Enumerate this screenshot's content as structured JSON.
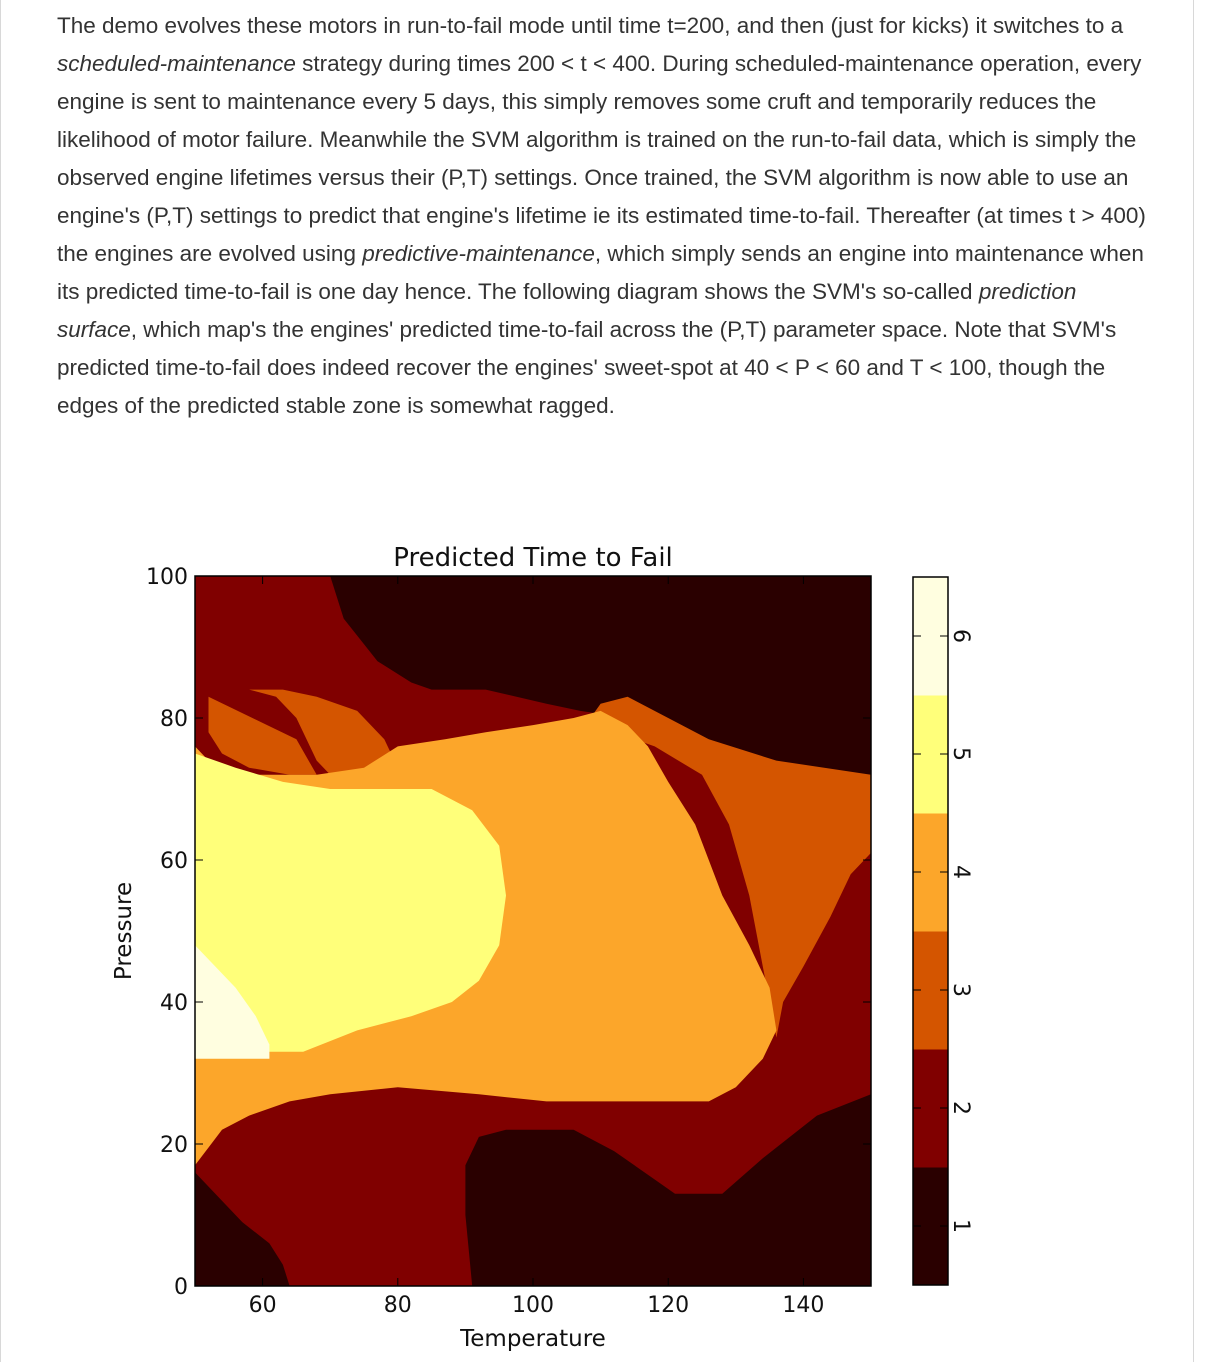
{
  "paragraph": {
    "p1": "The demo evolves these motors in run-to-fail mode until time t=200, and then (just for kicks) it switches to a ",
    "em1": "scheduled-maintenance",
    "p2": " strategy during times 200 < t < 400. During scheduled-maintenance operation, every engine is sent to maintenance every 5 days, this simply removes some cruft and temporarily reduces the likelihood of motor failure. Meanwhile the SVM algorithm is trained on the run-to-fail data, which is simply the observed engine lifetimes versus their (P,T) settings. Once trained, the SVM algorithm is now able to use an engine's (P,T) settings to predict that engine's lifetime ie its estimated time-to-fail. Thereafter (at times t > 400) the engines are evolved using ",
    "em2": "predictive-maintenance",
    "p3": ", which simply sends an engine into maintenance when its predicted time-to-fail is one day hence. The following diagram shows the SVM's so-called ",
    "em3": "prediction surface",
    "p4": ", which map's the engines' predicted time-to-fail across the (P,T) parameter space. Note that SVM's predicted time-to-fail does indeed recover the engines' sweet-spot at 40 < P < 60 and T < 100, though the edges of the predicted stable zone is somewhat ragged."
  },
  "chart_data": {
    "type": "heatmap",
    "title": "Predicted Time to Fail",
    "xlabel": "Temperature",
    "ylabel": "Pressure",
    "xlim": [
      50,
      150
    ],
    "ylim": [
      0,
      100
    ],
    "x_ticks": [
      "60",
      "80",
      "100",
      "120",
      "140"
    ],
    "y_ticks": [
      "0",
      "20",
      "40",
      "60",
      "80",
      "100"
    ],
    "colorbar": {
      "ticks": [
        "1",
        "2",
        "3",
        "4",
        "5",
        "6"
      ],
      "levels": [
        {
          "value": 1,
          "color": "#2a0000"
        },
        {
          "value": 2,
          "color": "#800000"
        },
        {
          "value": 3,
          "color": "#d45500"
        },
        {
          "value": 4,
          "color": "#fca62a"
        },
        {
          "value": 5,
          "color": "#ffff7a"
        },
        {
          "value": 6,
          "color": "#fffee0"
        }
      ]
    },
    "regions": [
      {
        "level": 1,
        "points": [
          [
            50,
            16
          ],
          [
            53,
            13
          ],
          [
            57,
            9
          ],
          [
            61,
            6
          ],
          [
            63,
            3
          ],
          [
            64,
            0
          ],
          [
            50,
            0
          ]
        ]
      },
      {
        "level": 1,
        "points": [
          [
            91,
            0
          ],
          [
            90,
            10
          ],
          [
            90,
            17
          ],
          [
            92,
            21
          ],
          [
            96,
            22
          ],
          [
            106,
            22
          ],
          [
            112,
            19
          ],
          [
            118,
            15
          ],
          [
            121,
            13
          ],
          [
            128,
            13
          ],
          [
            134,
            18
          ],
          [
            138,
            21
          ],
          [
            142,
            24
          ],
          [
            150,
            27
          ],
          [
            150,
            0
          ]
        ]
      },
      {
        "level": 1,
        "points": [
          [
            70,
            100
          ],
          [
            72,
            94
          ],
          [
            77,
            88
          ],
          [
            82,
            85
          ],
          [
            85,
            84
          ],
          [
            93,
            84
          ],
          [
            102,
            82
          ],
          [
            107,
            81
          ],
          [
            114,
            80
          ],
          [
            118,
            78
          ],
          [
            124,
            75
          ],
          [
            132,
            74
          ],
          [
            136,
            72
          ],
          [
            150,
            72
          ],
          [
            150,
            100
          ]
        ]
      },
      {
        "level": 3,
        "points": [
          [
            52,
            83
          ],
          [
            58,
            84
          ],
          [
            62,
            83
          ],
          [
            65,
            80
          ],
          [
            68,
            74
          ],
          [
            70,
            72
          ],
          [
            73,
            72
          ],
          [
            77,
            71
          ],
          [
            80,
            73
          ],
          [
            78,
            77
          ],
          [
            74,
            81
          ],
          [
            68,
            83
          ],
          [
            63,
            84
          ],
          [
            58,
            84
          ],
          [
            52,
            83
          ],
          [
            52,
            78
          ],
          [
            54,
            75
          ],
          [
            58,
            73
          ],
          [
            64,
            72
          ],
          [
            68,
            72
          ],
          [
            65,
            77
          ]
        ]
      },
      {
        "level": 3,
        "points": [
          [
            107,
            78
          ],
          [
            110,
            82
          ],
          [
            114,
            83
          ],
          [
            120,
            80
          ],
          [
            126,
            77
          ],
          [
            136,
            74
          ],
          [
            150,
            72
          ],
          [
            150,
            61
          ],
          [
            147,
            58
          ],
          [
            144,
            52
          ],
          [
            140,
            45
          ],
          [
            137,
            40
          ],
          [
            136,
            35
          ],
          [
            134,
            45
          ],
          [
            132,
            55
          ],
          [
            129,
            65
          ],
          [
            125,
            72
          ],
          [
            118,
            76
          ],
          [
            112,
            78
          ]
        ]
      },
      {
        "level": 4,
        "points": [
          [
            50,
            76
          ],
          [
            52,
            74
          ],
          [
            58,
            72
          ],
          [
            68,
            72
          ],
          [
            75,
            73
          ],
          [
            80,
            76
          ],
          [
            87,
            77
          ],
          [
            93,
            78
          ],
          [
            100,
            79
          ],
          [
            106,
            80
          ],
          [
            110,
            81
          ],
          [
            114,
            79
          ],
          [
            117,
            76
          ],
          [
            120,
            71
          ],
          [
            124,
            65
          ],
          [
            128,
            55
          ],
          [
            132,
            48
          ],
          [
            135,
            42
          ],
          [
            136,
            36
          ],
          [
            134,
            32
          ],
          [
            130,
            28
          ],
          [
            126,
            26
          ],
          [
            112,
            26
          ],
          [
            102,
            26
          ],
          [
            92,
            27
          ],
          [
            80,
            28
          ],
          [
            70,
            27
          ],
          [
            64,
            26
          ],
          [
            58,
            24
          ],
          [
            54,
            22
          ],
          [
            50,
            17
          ]
        ]
      },
      {
        "level": 5,
        "points": [
          [
            50,
            75
          ],
          [
            56,
            73
          ],
          [
            63,
            71
          ],
          [
            70,
            70
          ],
          [
            78,
            70
          ],
          [
            85,
            70
          ],
          [
            91,
            67
          ],
          [
            95,
            62
          ],
          [
            96,
            55
          ],
          [
            95,
            48
          ],
          [
            92,
            43
          ],
          [
            88,
            40
          ],
          [
            82,
            38
          ],
          [
            74,
            36
          ],
          [
            66,
            33
          ],
          [
            60,
            33
          ],
          [
            54,
            34
          ],
          [
            50,
            35
          ]
        ]
      },
      {
        "level": 6,
        "points": [
          [
            50,
            48
          ],
          [
            53,
            45
          ],
          [
            56,
            42
          ],
          [
            59,
            38
          ],
          [
            61,
            34
          ],
          [
            61,
            32
          ],
          [
            50,
            32
          ]
        ]
      }
    ]
  }
}
